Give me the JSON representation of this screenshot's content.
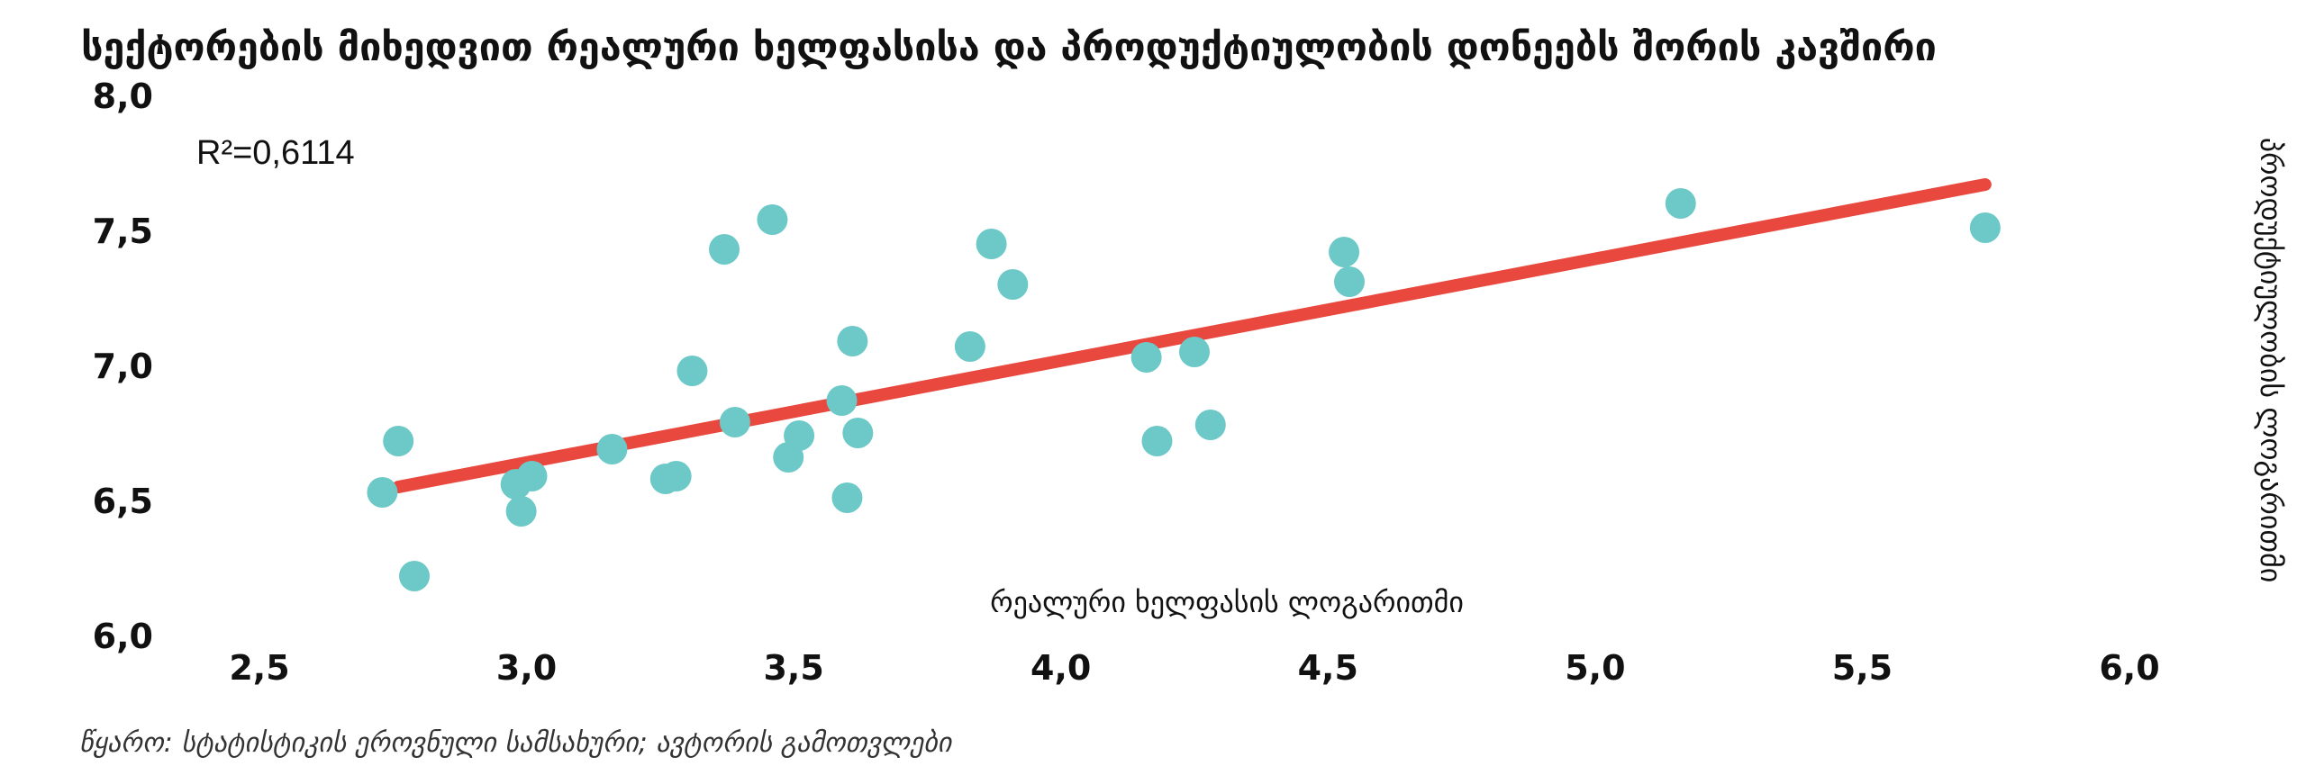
{
  "chart_data": {
    "type": "scatter",
    "title": "სექტორების მიხედვით რეალური ხელფასისა და პროდუქტიულობის დონეებს შორის კავშირი",
    "xlabel": "რეალური ხელფასის ლოგარითმი",
    "ylabel": "პროდუქტიულობის ლოგარითმი",
    "xlim": [
      2.5,
      6.0
    ],
    "ylim": [
      6.0,
      8.0
    ],
    "x_ticks": [
      "2,5",
      "3,0",
      "3,5",
      "4,0",
      "4,5",
      "5,0",
      "5,5",
      "6,0"
    ],
    "y_ticks": [
      "6,0",
      "6,5",
      "7,0",
      "7,5",
      "8,0"
    ],
    "grid": false,
    "legend": "none",
    "annotation": "R²=0,6114",
    "series": [
      {
        "marker_color": "#6cc9c7",
        "points": [
          {
            "x": 2.73,
            "y": 6.53
          },
          {
            "x": 2.76,
            "y": 6.72
          },
          {
            "x": 2.79,
            "y": 6.22
          },
          {
            "x": 2.98,
            "y": 6.56
          },
          {
            "x": 2.99,
            "y": 6.46
          },
          {
            "x": 3.01,
            "y": 6.59
          },
          {
            "x": 3.16,
            "y": 6.69
          },
          {
            "x": 3.26,
            "y": 6.58
          },
          {
            "x": 3.28,
            "y": 6.59
          },
          {
            "x": 3.31,
            "y": 6.98
          },
          {
            "x": 3.37,
            "y": 7.43
          },
          {
            "x": 3.39,
            "y": 6.79
          },
          {
            "x": 3.46,
            "y": 7.54
          },
          {
            "x": 3.49,
            "y": 6.66
          },
          {
            "x": 3.51,
            "y": 6.74
          },
          {
            "x": 3.59,
            "y": 6.87
          },
          {
            "x": 3.6,
            "y": 6.51
          },
          {
            "x": 3.61,
            "y": 7.09
          },
          {
            "x": 3.62,
            "y": 6.75
          },
          {
            "x": 3.83,
            "y": 7.07
          },
          {
            "x": 3.87,
            "y": 7.45
          },
          {
            "x": 3.91,
            "y": 7.3
          },
          {
            "x": 4.16,
            "y": 7.03
          },
          {
            "x": 4.18,
            "y": 6.72
          },
          {
            "x": 4.25,
            "y": 7.05
          },
          {
            "x": 4.28,
            "y": 6.78
          },
          {
            "x": 4.53,
            "y": 7.42
          },
          {
            "x": 4.54,
            "y": 7.31
          },
          {
            "x": 5.16,
            "y": 7.6
          },
          {
            "x": 5.73,
            "y": 7.51
          }
        ]
      }
    ],
    "trendline": {
      "color": "#e8483d",
      "from": {
        "x": 2.76,
        "y": 6.55
      },
      "to": {
        "x": 5.73,
        "y": 7.67
      }
    }
  },
  "source_note": "წყარო: სტატისტიკის ეროვნული სამსახური; ავტორის გამოთვლები"
}
